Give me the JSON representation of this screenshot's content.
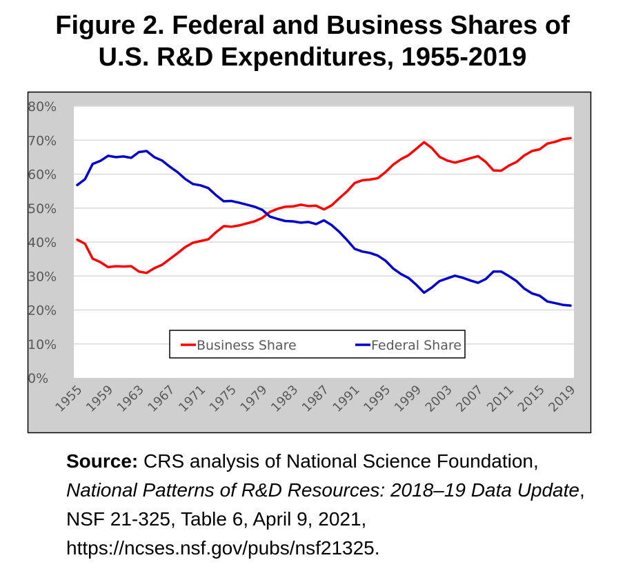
{
  "title_line1": "Figure 2. Federal and Business Shares of",
  "title_line2": "U.S. R&D Expenditures, 1955-2019",
  "source": {
    "label": "Source:",
    "text1": " CRS analysis of National Science Foundation, ",
    "italic": "National Patterns of R&D Resources: 2018–19 Data Update",
    "text2": ", NSF 21-325, Table 6, April 9, 2021, https://ncses.nsf.gov/pubs/nsf21325."
  },
  "chart_data": {
    "type": "line",
    "title": "",
    "xlabel": "",
    "ylabel": "",
    "xlim": [
      1955,
      2019
    ],
    "ylim": [
      0,
      80
    ],
    "yticks": [
      0,
      10,
      20,
      30,
      40,
      50,
      60,
      70,
      80
    ],
    "ytick_labels": [
      "0%",
      "10%",
      "20%",
      "30%",
      "40%",
      "50%",
      "60%",
      "70%",
      "80%"
    ],
    "xticks": [
      1955,
      1959,
      1963,
      1967,
      1971,
      1975,
      1979,
      1983,
      1987,
      1991,
      1995,
      1999,
      2003,
      2007,
      2011,
      2015,
      2019
    ],
    "grid": "horizontal",
    "legend_placement": "bottom-center",
    "colors": {
      "plot_background": "#ffffff",
      "chart_background": "#d0cfd0",
      "grid": "#d9d9d9",
      "tick_text": "#595959"
    },
    "x": [
      1955,
      1956,
      1957,
      1958,
      1959,
      1960,
      1961,
      1962,
      1963,
      1964,
      1965,
      1966,
      1967,
      1968,
      1969,
      1970,
      1971,
      1972,
      1973,
      1974,
      1975,
      1976,
      1977,
      1978,
      1979,
      1980,
      1981,
      1982,
      1983,
      1984,
      1985,
      1986,
      1987,
      1988,
      1989,
      1990,
      1991,
      1992,
      1993,
      1994,
      1995,
      1996,
      1997,
      1998,
      1999,
      2000,
      2001,
      2002,
      2003,
      2004,
      2005,
      2006,
      2007,
      2008,
      2009,
      2010,
      2011,
      2012,
      2013,
      2014,
      2015,
      2016,
      2017,
      2018,
      2019
    ],
    "series": [
      {
        "name": "Business Share",
        "color": "#ff0000",
        "values": [
          40.7,
          39.5,
          35.1,
          34.1,
          32.6,
          32.9,
          32.8,
          32.9,
          31.3,
          30.9,
          32.3,
          33.3,
          35.0,
          36.7,
          38.5,
          39.8,
          40.3,
          40.8,
          42.9,
          44.7,
          44.5,
          44.9,
          45.5,
          46.1,
          47.1,
          48.9,
          49.8,
          50.4,
          50.5,
          51.0,
          50.6,
          50.7,
          49.6,
          50.8,
          52.9,
          54.9,
          57.4,
          58.2,
          58.4,
          58.8,
          60.6,
          62.8,
          64.4,
          65.6,
          67.5,
          69.4,
          67.7,
          65.1,
          64.0,
          63.4,
          64.0,
          64.7,
          65.3,
          63.6,
          61.1,
          61.0,
          62.5,
          63.6,
          65.5,
          66.8,
          67.3,
          69.0,
          69.5,
          70.3,
          70.6
        ]
      },
      {
        "name": "Federal Share",
        "color": "#0000cc",
        "values": [
          56.8,
          58.5,
          63.0,
          63.9,
          65.4,
          65.0,
          65.2,
          64.8,
          66.5,
          66.8,
          65.0,
          64.0,
          62.2,
          60.6,
          58.6,
          57.1,
          56.7,
          55.9,
          53.8,
          52.0,
          52.1,
          51.6,
          51.0,
          50.4,
          49.5,
          47.5,
          46.8,
          46.2,
          46.1,
          45.7,
          45.9,
          45.3,
          46.4,
          45.0,
          43.0,
          40.6,
          38.0,
          37.2,
          36.8,
          36.0,
          34.5,
          32.2,
          30.6,
          29.4,
          27.4,
          25.1,
          26.6,
          28.5,
          29.3,
          30.1,
          29.5,
          28.7,
          28.0,
          29.1,
          31.3,
          31.3,
          30.0,
          28.5,
          26.3,
          24.9,
          24.2,
          22.5,
          22.0,
          21.5,
          21.3
        ]
      }
    ]
  }
}
